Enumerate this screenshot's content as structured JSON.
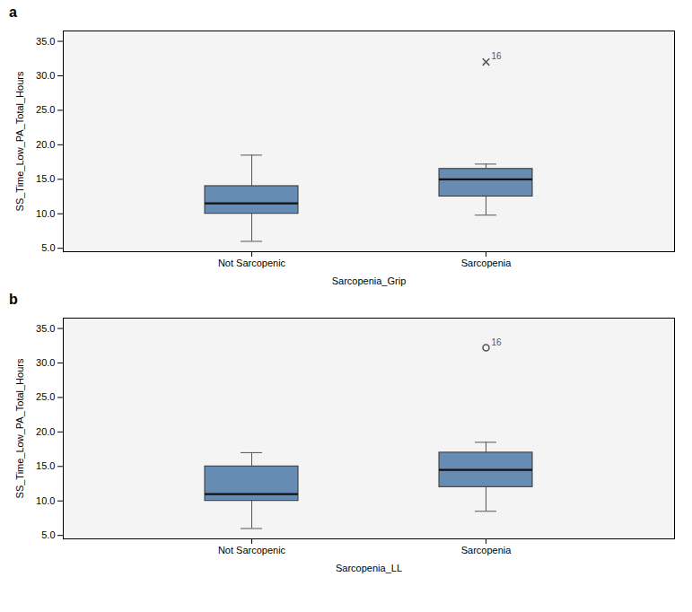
{
  "chart_data": [
    {
      "type": "box",
      "title": "a",
      "x_label": "Sarcopenia_Grip",
      "y_label": "SS_Time_Low_PA_Total_Hours",
      "categories": [
        "Not Sarcopenic",
        "Sarcopenia"
      ],
      "boxes": [
        {
          "whisker_low": 6.0,
          "q1": 10.0,
          "median": 11.5,
          "q3": 14.0,
          "whisker_high": 18.5,
          "outliers": []
        },
        {
          "whisker_low": 9.8,
          "q1": 12.5,
          "median": 15.0,
          "q3": 16.5,
          "whisker_high": 17.2,
          "outliers": [
            32.0
          ],
          "outlier_label": "16"
        }
      ],
      "marker": "x",
      "ylim": [
        4.5,
        36.5
      ],
      "yticks": [
        {
          "value": 5.0,
          "label": "5.0"
        },
        {
          "value": 10.0,
          "label": "10.0"
        },
        {
          "value": 15.0,
          "label": "15.0"
        },
        {
          "value": 20.0,
          "label": "20.0"
        },
        {
          "value": 25.0,
          "label": "25.0"
        },
        {
          "value": 30.0,
          "label": "30.0"
        },
        {
          "value": 35.0,
          "label": "35.0"
        }
      ],
      "grid": true
    },
    {
      "type": "box",
      "title": "b",
      "x_label": "Sarcopenia_LL",
      "y_label": "SS_Time_Low_PA_Total_Hours",
      "categories": [
        "Not Sarcopenic",
        "Sarcopenia"
      ],
      "boxes": [
        {
          "whisker_low": 6.0,
          "q1": 10.0,
          "median": 11.0,
          "q3": 15.0,
          "whisker_high": 17.0,
          "outliers": []
        },
        {
          "whisker_low": 8.5,
          "q1": 12.0,
          "median": 14.5,
          "q3": 17.0,
          "whisker_high": 18.5,
          "outliers": [
            32.2
          ],
          "outlier_label": "16"
        }
      ],
      "marker": "o",
      "ylim": [
        4.5,
        36.5
      ],
      "yticks": [
        {
          "value": 5.0,
          "label": "5.0"
        },
        {
          "value": 10.0,
          "label": "10.0"
        },
        {
          "value": 15.0,
          "label": "15.0"
        },
        {
          "value": 20.0,
          "label": "20.0"
        },
        {
          "value": 25.0,
          "label": "25.0"
        },
        {
          "value": 30.0,
          "label": "30.0"
        },
        {
          "value": 35.0,
          "label": "35.0"
        }
      ],
      "grid": true
    }
  ]
}
